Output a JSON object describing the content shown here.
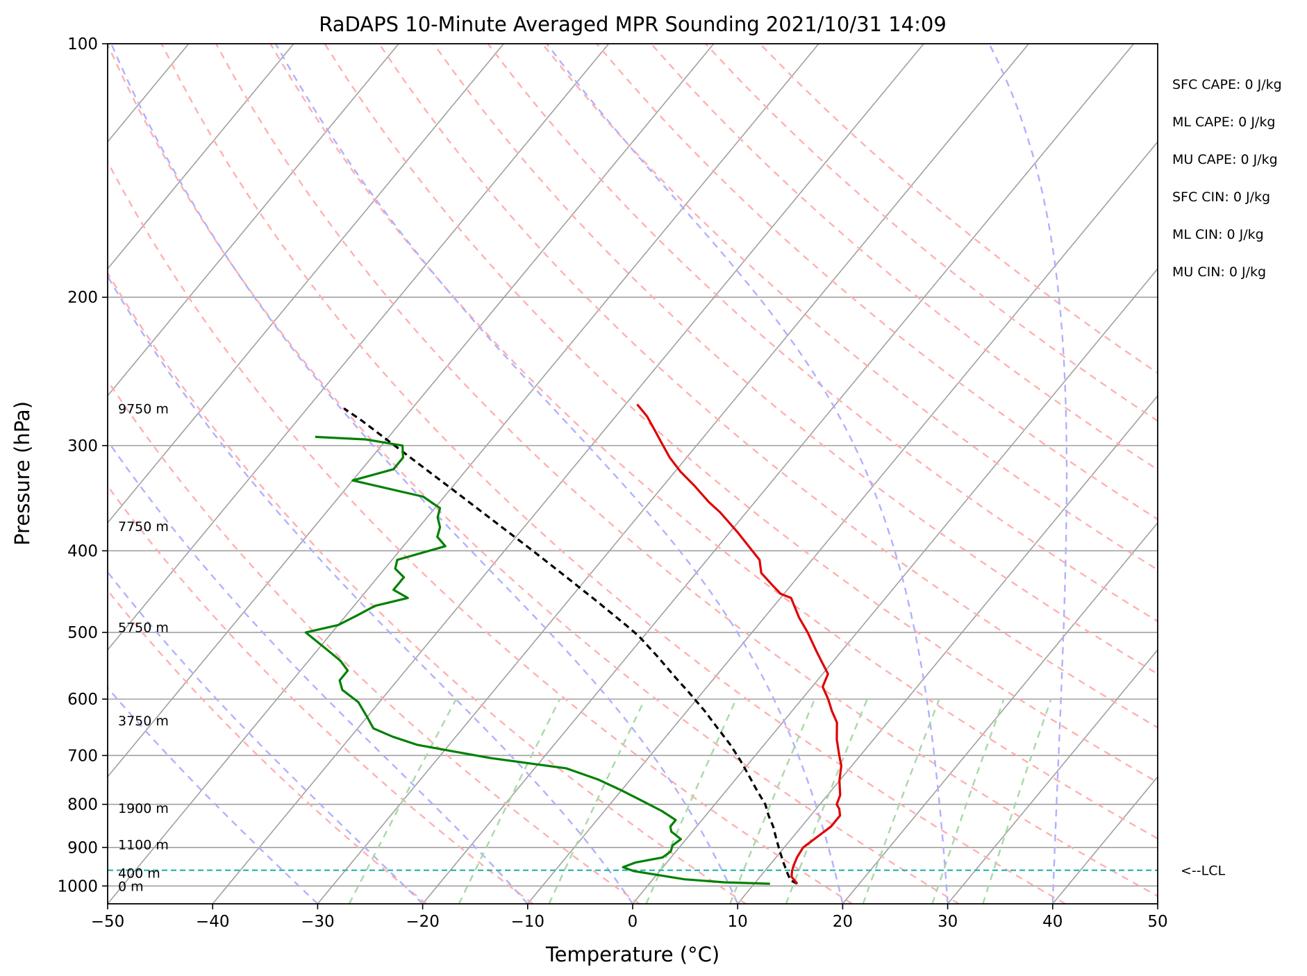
{
  "chart_data": {
    "type": "skew-t",
    "title": "RaDAPS 10-Minute Averaged MPR Sounding 2021/10/31 14:09",
    "xlabel": "Temperature (°C)",
    "ylabel": "Pressure (hPa)",
    "xlim": [
      -50,
      50
    ],
    "ylim": [
      1050,
      100
    ],
    "y_scale": "log",
    "x_ticks": [
      "−50",
      "−40",
      "−30",
      "−20",
      "−10",
      "0",
      "10",
      "20",
      "30",
      "40",
      "50"
    ],
    "y_ticks": [
      "100",
      "200",
      "300",
      "400",
      "500",
      "600",
      "700",
      "800",
      "900",
      "1000"
    ],
    "grid": true,
    "temperature": {
      "color": "#e00000",
      "points": [
        [
          14.1,
          994
        ],
        [
          13.0,
          975
        ],
        [
          12.6,
          960
        ],
        [
          12.3,
          945
        ],
        [
          12.0,
          925
        ],
        [
          11.8,
          900
        ],
        [
          12.3,
          875
        ],
        [
          12.8,
          850
        ],
        [
          12.8,
          825
        ],
        [
          12.2,
          810
        ],
        [
          11.6,
          800
        ],
        [
          11.2,
          780
        ],
        [
          10.0,
          750
        ],
        [
          9.0,
          720
        ],
        [
          8.0,
          700
        ],
        [
          6.5,
          670
        ],
        [
          5.2,
          640
        ],
        [
          3.8,
          620
        ],
        [
          2.5,
          600
        ],
        [
          1.0,
          580
        ],
        [
          0.5,
          560
        ],
        [
          -1.2,
          540
        ],
        [
          -2.5,
          525
        ],
        [
          -4.7,
          500
        ],
        [
          -6.7,
          480
        ],
        [
          -7.6,
          470
        ],
        [
          -9.0,
          455
        ],
        [
          -10.3,
          450
        ],
        [
          -11.7,
          440
        ],
        [
          -13.8,
          425
        ],
        [
          -15.0,
          410
        ],
        [
          -16.4,
          400
        ],
        [
          -19.3,
          380
        ],
        [
          -22.5,
          360
        ],
        [
          -24.4,
          350
        ],
        [
          -27.0,
          335
        ],
        [
          -29.5,
          322
        ],
        [
          -31.6,
          310
        ],
        [
          -33.5,
          298
        ],
        [
          -35.3,
          287
        ],
        [
          -37.0,
          277
        ],
        [
          -38.9,
          268
        ]
      ]
    },
    "dewpoint": {
      "color": "#008000",
      "points": [
        [
          11.5,
          994
        ],
        [
          7.0,
          990
        ],
        [
          3.0,
          982
        ],
        [
          0.0,
          970
        ],
        [
          -2.5,
          960
        ],
        [
          -3.8,
          950
        ],
        [
          -3.0,
          938
        ],
        [
          -0.8,
          925
        ],
        [
          -0.5,
          910
        ],
        [
          -0.8,
          895
        ],
        [
          -0.5,
          880
        ],
        [
          -2.0,
          862
        ],
        [
          -2.5,
          850
        ],
        [
          -2.5,
          835
        ],
        [
          -4.5,
          815
        ],
        [
          -7.5,
          790
        ],
        [
          -10.0,
          770
        ],
        [
          -13.0,
          748
        ],
        [
          -17.0,
          725
        ],
        [
          -25.0,
          705
        ],
        [
          -33.0,
          680
        ],
        [
          -36.0,
          665
        ],
        [
          -38.5,
          650
        ],
        [
          -40.0,
          630
        ],
        [
          -42.0,
          605
        ],
        [
          -44.5,
          585
        ],
        [
          -45.5,
          570
        ],
        [
          -45.5,
          555
        ],
        [
          -47.0,
          540
        ],
        [
          -49.0,
          525
        ],
        [
          -52.5,
          500
        ],
        [
          -50.0,
          490
        ],
        [
          -49.0,
          478
        ],
        [
          -48.0,
          465
        ],
        [
          -45.5,
          455
        ],
        [
          -47.5,
          445
        ],
        [
          -47.5,
          430
        ],
        [
          -49.0,
          420
        ],
        [
          -49.5,
          410
        ],
        [
          -46.0,
          395
        ],
        [
          -47.5,
          385
        ],
        [
          -48.0,
          375
        ],
        [
          -49.0,
          365
        ],
        [
          -49.5,
          356
        ],
        [
          -52.0,
          345
        ],
        [
          -60.0,
          330
        ],
        [
          -57.0,
          320
        ],
        [
          -57.0,
          310
        ],
        [
          -58.0,
          300
        ],
        [
          -62.0,
          295
        ],
        [
          -67.0,
          293
        ]
      ]
    },
    "parcel_profile": {
      "color": "#000000",
      "style": "dashed",
      "points": [
        [
          14.1,
          994
        ],
        [
          13.2,
          985
        ],
        [
          12.3,
          965
        ],
        [
          11.2,
          940
        ],
        [
          9.9,
          910
        ],
        [
          8.6,
          880
        ],
        [
          7.3,
          850
        ],
        [
          6.0,
          825
        ],
        [
          4.8,
          800
        ],
        [
          2.9,
          770
        ],
        [
          1.0,
          740
        ],
        [
          -1.0,
          710
        ],
        [
          -3.2,
          680
        ],
        [
          -5.7,
          650
        ],
        [
          -8.3,
          620
        ],
        [
          -11.2,
          590
        ],
        [
          -13.8,
          565
        ],
        [
          -17.0,
          535
        ],
        [
          -20.5,
          505
        ],
        [
          -22.6,
          490
        ],
        [
          -27.1,
          460
        ],
        [
          -32.0,
          430
        ],
        [
          -37.3,
          400
        ],
        [
          -43.1,
          370
        ],
        [
          -49.4,
          340
        ],
        [
          -56.3,
          310
        ],
        [
          -63.9,
          280
        ],
        [
          -66.5,
          271
        ]
      ]
    },
    "lcl": {
      "pressure": 958,
      "label": "<--LCL",
      "color": "#20b2aa"
    },
    "height_labels": [
      {
        "text": "9750 m",
        "pressure": 271
      },
      {
        "text": "7750 m",
        "pressure": 374
      },
      {
        "text": "5750 m",
        "pressure": 493
      },
      {
        "text": "3750 m",
        "pressure": 636
      },
      {
        "text": "1900 m",
        "pressure": 808
      },
      {
        "text": "1100 m",
        "pressure": 893
      },
      {
        "text": "400 m",
        "pressure": 965
      },
      {
        "text": "0 m",
        "pressure": 1000
      }
    ],
    "parameters": [
      "SFC CAPE: 0 J/kg",
      "ML CAPE: 0 J/kg",
      "MU CAPE: 0 J/kg",
      "SFC CIN: 0 J/kg",
      "ML CIN: 0 J/kg",
      "MU CIN: 0 J/kg"
    ],
    "dry_adiabat_thetas_K": [
      250,
      260,
      270,
      280,
      290,
      300,
      310,
      320,
      330,
      340,
      350,
      360,
      370,
      380,
      390,
      400,
      410,
      420
    ],
    "moist_adiabat_start_C": [
      -30,
      -20,
      -10,
      0,
      10,
      20,
      30,
      40,
      50
    ],
    "mixing_ratio_lines_gkg": [
      0.4,
      1,
      2,
      4,
      7,
      10,
      16,
      24,
      32
    ],
    "colors": {
      "isotherm": "#a0a0a0",
      "isobar": "#a0a0a0",
      "dry_adiabat": "#ffb0b0",
      "moist_adiabat": "#b0b0ff",
      "mixing_ratio": "#a8d8a8"
    }
  }
}
